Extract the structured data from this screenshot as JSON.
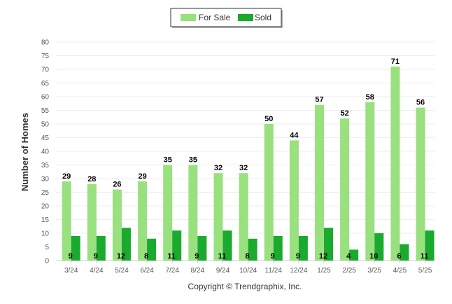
{
  "chart_data": {
    "type": "bar",
    "categories": [
      "3/24",
      "4/24",
      "5/24",
      "6/24",
      "7/24",
      "8/24",
      "9/24",
      "10/24",
      "11/24",
      "12/24",
      "1/25",
      "2/25",
      "3/25",
      "4/25",
      "5/25"
    ],
    "series": [
      {
        "name": "For Sale",
        "color": "#99e07f",
        "values": [
          29,
          28,
          26,
          29,
          35,
          35,
          32,
          32,
          50,
          44,
          57,
          52,
          58,
          71,
          56
        ]
      },
      {
        "name": "Sold",
        "color": "#1aaa2e",
        "values": [
          9,
          9,
          12,
          8,
          11,
          9,
          11,
          8,
          9,
          9,
          12,
          4,
          10,
          6,
          11
        ]
      }
    ],
    "title": "",
    "xlabel": "",
    "ylabel": "Number of Homes",
    "ylim": [
      0,
      80
    ],
    "yticks": [
      0,
      5,
      10,
      15,
      20,
      25,
      30,
      35,
      40,
      45,
      50,
      55,
      60,
      65,
      70,
      75,
      80
    ],
    "grid": true,
    "legend": "top-center",
    "copyright": "Copyright © Trendgraphix, Inc."
  }
}
